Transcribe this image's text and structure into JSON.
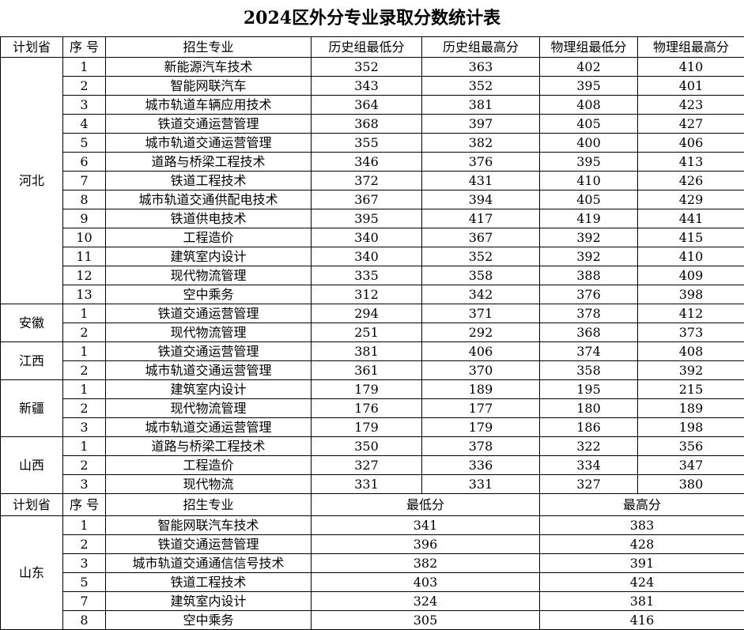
{
  "title": "2024区外分专业录取分数统计表",
  "table1": {
    "headers": [
      "计划省",
      "序 号",
      "招生专业",
      "历史组最低分",
      "历史组最高分",
      "物理组最低分",
      "物理组最高分"
    ],
    "groups": [
      {
        "province": "河北",
        "rows": [
          [
            "1",
            "新能源汽车技术",
            "352",
            "363",
            "402",
            "410"
          ],
          [
            "2",
            "智能网联汽车",
            "343",
            "352",
            "395",
            "401"
          ],
          [
            "3",
            "城市轨道车辆应用技术",
            "364",
            "381",
            "408",
            "423"
          ],
          [
            "4",
            "铁道交通运营管理",
            "368",
            "397",
            "405",
            "427"
          ],
          [
            "5",
            "城市轨道交通运营管理",
            "355",
            "382",
            "400",
            "406"
          ],
          [
            "6",
            "道路与桥梁工程技术",
            "346",
            "376",
            "395",
            "413"
          ],
          [
            "7",
            "铁道工程技术",
            "372",
            "431",
            "410",
            "426"
          ],
          [
            "8",
            "城市轨道交通供配电技术",
            "367",
            "394",
            "405",
            "429"
          ],
          [
            "9",
            "铁道供电技术",
            "395",
            "417",
            "419",
            "441"
          ],
          [
            "10",
            "工程造价",
            "340",
            "367",
            "392",
            "415"
          ],
          [
            "11",
            "建筑室内设计",
            "340",
            "352",
            "392",
            "410"
          ],
          [
            "12",
            "现代物流管理",
            "335",
            "358",
            "388",
            "409"
          ],
          [
            "13",
            "空中乘务",
            "312",
            "342",
            "376",
            "398"
          ]
        ]
      },
      {
        "province": "安徽",
        "rows": [
          [
            "1",
            "铁道交通运营管理",
            "294",
            "371",
            "378",
            "412"
          ],
          [
            "2",
            "现代物流管理",
            "251",
            "292",
            "368",
            "373"
          ]
        ]
      },
      {
        "province": "江西",
        "rows": [
          [
            "1",
            "铁道交通运营管理",
            "381",
            "406",
            "374",
            "408"
          ],
          [
            "2",
            "城市轨道交通运营管理",
            "361",
            "370",
            "358",
            "392"
          ]
        ]
      },
      {
        "province": "新疆",
        "rows": [
          [
            "1",
            "建筑室内设计",
            "179",
            "189",
            "195",
            "215"
          ],
          [
            "2",
            "现代物流管理",
            "176",
            "177",
            "180",
            "189"
          ],
          [
            "3",
            "城市轨道交通运营管理",
            "179",
            "179",
            "186",
            "198"
          ]
        ]
      },
      {
        "province": "山西",
        "rows": [
          [
            "1",
            "道路与桥梁工程技术",
            "350",
            "378",
            "322",
            "356"
          ],
          [
            "2",
            "工程造价",
            "327",
            "336",
            "334",
            "347"
          ],
          [
            "3",
            "现代物流",
            "331",
            "331",
            "327",
            "380"
          ]
        ]
      }
    ]
  },
  "table2": {
    "headers": [
      "计划省",
      "序 号",
      "招生专业",
      "最低分",
      "最高分"
    ],
    "groups": [
      {
        "province": "山东",
        "rows": [
          [
            "1",
            "智能网联汽车技术",
            "341",
            "383"
          ],
          [
            "2",
            "铁道交通运营管理",
            "396",
            "428"
          ],
          [
            "3",
            "城市轨道交通通信信号技术",
            "382",
            "391"
          ],
          [
            "5",
            "铁道工程技术",
            "403",
            "424"
          ],
          [
            "7",
            "建筑室内设计",
            "324",
            "381"
          ],
          [
            "8",
            "空中乘务",
            "305",
            "416"
          ]
        ]
      }
    ]
  }
}
